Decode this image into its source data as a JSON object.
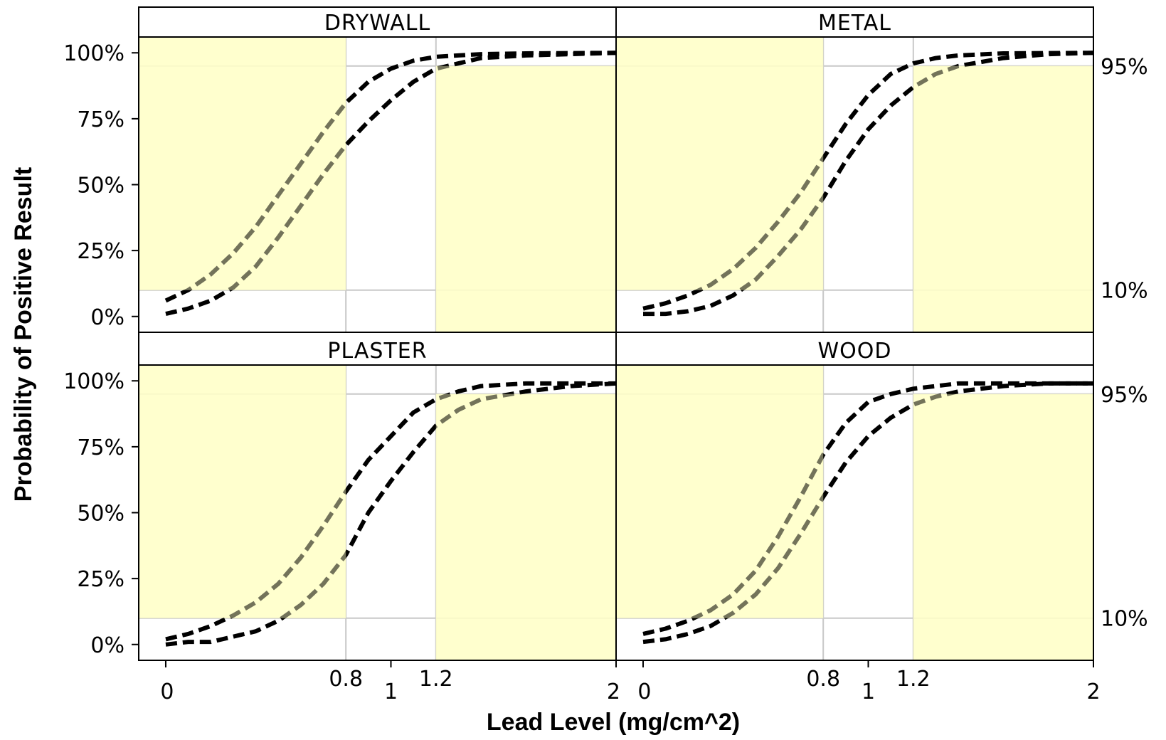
{
  "chart_data": {
    "type": "line",
    "panel_layout": "2x2",
    "xlabel": "Lead Level (mg/cm^2)",
    "ylabel": "Probability of Positive Result",
    "xlim": [
      -0.12,
      2.0
    ],
    "ylim": [
      -0.06,
      1.06
    ],
    "x_ticks": [
      0,
      0.8,
      1,
      1.2,
      2
    ],
    "x_tick_labels": [
      "0",
      "0.8",
      "1",
      "1.2",
      "2"
    ],
    "y_ticks": [
      0,
      0.25,
      0.5,
      0.75,
      1.0
    ],
    "y_tick_labels": [
      "0%",
      "25%",
      "50%",
      "75%",
      "100%"
    ],
    "reference_lines": {
      "x": [
        0.8,
        1.2
      ],
      "y": [
        0.1,
        0.95
      ],
      "y_labels": [
        "10%",
        "95%"
      ]
    },
    "grid": false,
    "shaded_regions": [
      {
        "x": [
          -0.12,
          0.8
        ],
        "y": [
          0.1,
          1.06
        ],
        "color": "#ffffc8"
      },
      {
        "x": [
          1.2,
          2.0
        ],
        "y": [
          -0.06,
          0.95
        ],
        "color": "#ffffc8"
      }
    ],
    "line_style": "dashed",
    "line_color": "#000000",
    "panels": [
      {
        "name": "DRYWALL",
        "series": [
          {
            "x": [
              0,
              0.1,
              0.2,
              0.3,
              0.4,
              0.5,
              0.6,
              0.7,
              0.8,
              0.9,
              1.0,
              1.1,
              1.2,
              1.3,
              1.4,
              1.6,
              1.8,
              2.0
            ],
            "y": [
              0.06,
              0.1,
              0.16,
              0.24,
              0.34,
              0.46,
              0.58,
              0.7,
              0.81,
              0.89,
              0.94,
              0.97,
              0.985,
              0.99,
              0.995,
              0.998,
              0.999,
              1.0
            ]
          },
          {
            "x": [
              0,
              0.1,
              0.2,
              0.3,
              0.4,
              0.5,
              0.6,
              0.7,
              0.8,
              0.9,
              1.0,
              1.1,
              1.2,
              1.3,
              1.4,
              1.6,
              1.8,
              2.0
            ],
            "y": [
              0.01,
              0.03,
              0.06,
              0.11,
              0.19,
              0.3,
              0.42,
              0.54,
              0.65,
              0.74,
              0.82,
              0.89,
              0.94,
              0.96,
              0.98,
              0.99,
              0.995,
              1.0
            ]
          }
        ]
      },
      {
        "name": "METAL",
        "series": [
          {
            "x": [
              0,
              0.1,
              0.2,
              0.3,
              0.4,
              0.5,
              0.6,
              0.7,
              0.8,
              0.9,
              1.0,
              1.1,
              1.2,
              1.3,
              1.4,
              1.6,
              1.8,
              2.0
            ],
            "y": [
              0.03,
              0.05,
              0.08,
              0.12,
              0.18,
              0.26,
              0.36,
              0.47,
              0.6,
              0.73,
              0.84,
              0.92,
              0.96,
              0.98,
              0.99,
              0.998,
              0.999,
              1.0
            ]
          },
          {
            "x": [
              0,
              0.1,
              0.2,
              0.3,
              0.4,
              0.5,
              0.6,
              0.7,
              0.8,
              0.9,
              1.0,
              1.1,
              1.2,
              1.3,
              1.4,
              1.6,
              1.8,
              2.0
            ],
            "y": [
              0.01,
              0.01,
              0.02,
              0.04,
              0.08,
              0.14,
              0.23,
              0.33,
              0.45,
              0.59,
              0.71,
              0.8,
              0.87,
              0.92,
              0.95,
              0.98,
              0.995,
              1.0
            ]
          }
        ]
      },
      {
        "name": "PLASTER",
        "series": [
          {
            "x": [
              0,
              0.1,
              0.2,
              0.3,
              0.4,
              0.5,
              0.6,
              0.7,
              0.8,
              0.9,
              1.0,
              1.1,
              1.2,
              1.3,
              1.4,
              1.6,
              1.8,
              2.0
            ],
            "y": [
              0.02,
              0.04,
              0.07,
              0.11,
              0.16,
              0.23,
              0.33,
              0.45,
              0.58,
              0.7,
              0.79,
              0.88,
              0.93,
              0.96,
              0.98,
              0.99,
              0.99,
              0.99
            ]
          },
          {
            "x": [
              0,
              0.1,
              0.2,
              0.3,
              0.4,
              0.5,
              0.6,
              0.7,
              0.8,
              0.9,
              1.0,
              1.1,
              1.2,
              1.3,
              1.4,
              1.6,
              1.8,
              2.0
            ],
            "y": [
              0.0,
              0.01,
              0.01,
              0.03,
              0.05,
              0.09,
              0.15,
              0.23,
              0.34,
              0.5,
              0.62,
              0.73,
              0.83,
              0.89,
              0.93,
              0.96,
              0.98,
              0.99
            ]
          }
        ]
      },
      {
        "name": "WOOD",
        "series": [
          {
            "x": [
              0,
              0.1,
              0.2,
              0.3,
              0.4,
              0.5,
              0.6,
              0.7,
              0.8,
              0.9,
              1.0,
              1.1,
              1.2,
              1.3,
              1.4,
              1.6,
              1.8,
              2.0
            ],
            "y": [
              0.04,
              0.06,
              0.09,
              0.13,
              0.19,
              0.28,
              0.41,
              0.56,
              0.72,
              0.84,
              0.92,
              0.95,
              0.97,
              0.98,
              0.99,
              0.99,
              0.99,
              0.99
            ]
          },
          {
            "x": [
              0,
              0.1,
              0.2,
              0.3,
              0.4,
              0.5,
              0.6,
              0.7,
              0.8,
              0.9,
              1.0,
              1.1,
              1.2,
              1.3,
              1.4,
              1.6,
              1.8,
              2.0
            ],
            "y": [
              0.01,
              0.02,
              0.04,
              0.07,
              0.12,
              0.19,
              0.29,
              0.42,
              0.56,
              0.69,
              0.79,
              0.86,
              0.91,
              0.94,
              0.96,
              0.98,
              0.99,
              0.99
            ]
          }
        ]
      }
    ]
  }
}
